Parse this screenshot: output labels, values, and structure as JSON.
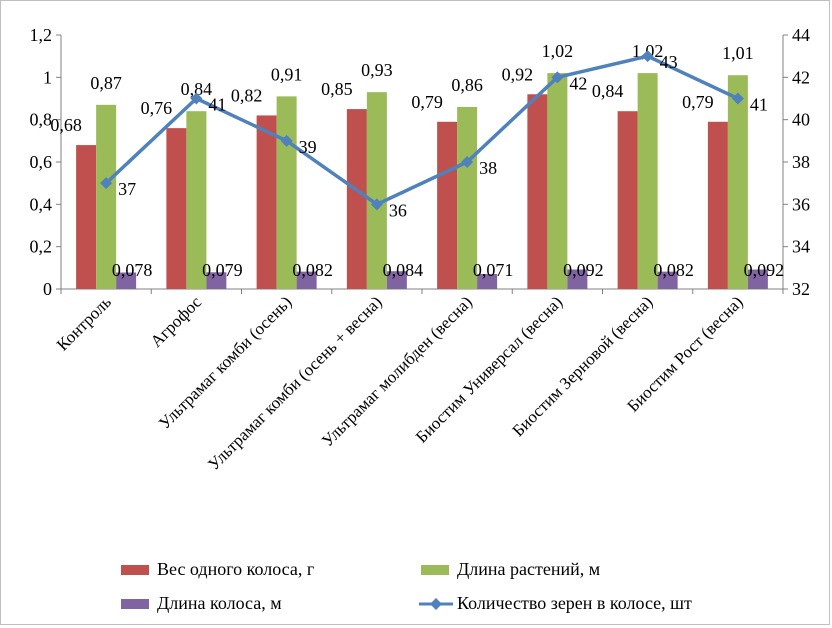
{
  "chart_data": {
    "type": "bar",
    "categories": [
      "Контроль",
      "Агрофос",
      "Ультрамаг комби (осень)",
      "Ультрамаг комби (осень + весна)",
      "Ультрамаг молибден (весна)",
      "Биостим Универсал (весна)",
      "Биостим Зерновой (весна)",
      "Биостим Рост (весна)"
    ],
    "series": [
      {
        "name": "Вес одного колоса, г",
        "chart": "bar",
        "axis": "left",
        "color": "#c0504d",
        "values": [
          0.68,
          0.76,
          0.82,
          0.85,
          0.79,
          0.92,
          0.84,
          0.79
        ],
        "labels": [
          "0,68",
          "0,76",
          "0,82",
          "0,85",
          "0,79",
          "0,92",
          "0,84",
          "0,79"
        ]
      },
      {
        "name": "Длина растений, м",
        "chart": "bar",
        "axis": "left",
        "color": "#9bbb59",
        "values": [
          0.87,
          0.84,
          0.91,
          0.93,
          0.86,
          1.02,
          1.02,
          1.01
        ],
        "labels": [
          "0,87",
          "0,84",
          "0,91",
          "0,93",
          "0,86",
          "1,02",
          "1,02",
          "1,01"
        ]
      },
      {
        "name": "Длина колоса, м",
        "chart": "bar",
        "axis": "left",
        "color": "#8064a2",
        "values": [
          0.078,
          0.079,
          0.082,
          0.084,
          0.071,
          0.092,
          0.082,
          0.092
        ],
        "labels": [
          "0,078",
          "0,079",
          "0,082",
          "0,084",
          "0,071",
          "0,092",
          "0,082",
          "0,092"
        ]
      },
      {
        "name": "Количество зерен в колосе, шт",
        "chart": "line",
        "axis": "right",
        "color": "#4f81bd",
        "values": [
          37,
          41,
          39,
          36,
          38,
          42,
          43,
          41
        ],
        "labels": [
          "37",
          "41",
          "39",
          "36",
          "38",
          "42",
          "43",
          "41"
        ]
      }
    ],
    "ylim": [
      0,
      1.2
    ],
    "yticks": [
      "0",
      "0,2",
      "0,4",
      "0,6",
      "0,8",
      "1",
      "1,2"
    ],
    "y2lim": [
      32,
      44
    ],
    "y2ticks": [
      "32",
      "34",
      "36",
      "38",
      "40",
      "42",
      "44"
    ],
    "grid": false,
    "legend_position": "bottom"
  }
}
